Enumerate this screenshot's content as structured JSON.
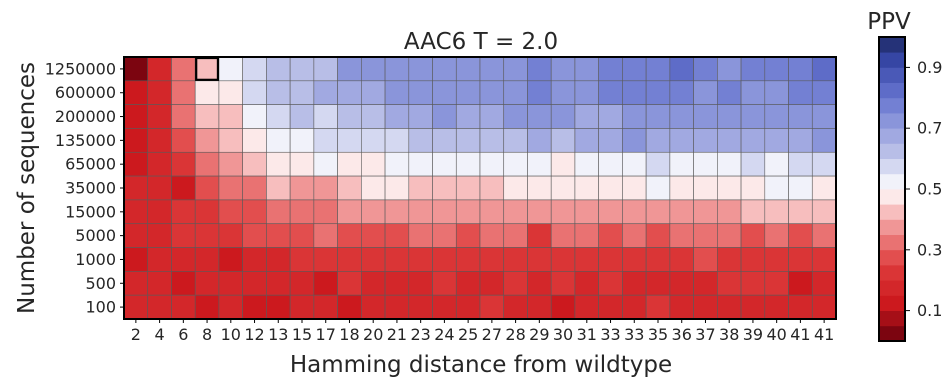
{
  "chart_data": {
    "type": "heatmap",
    "title": "AAC6 T = 2.0",
    "xlabel": "Hamming distance from wildtype",
    "ylabel": "Number of sequences",
    "x_categories": [
      "2",
      "4",
      "6",
      "8",
      "10",
      "12",
      "13",
      "15",
      "17",
      "18",
      "20",
      "21",
      "23",
      "24",
      "25",
      "27",
      "28",
      "29",
      "30",
      "31",
      "33",
      "33",
      "35",
      "36",
      "37",
      "38",
      "39",
      "40",
      "41",
      "41"
    ],
    "y_categories": [
      "1250000",
      "600000",
      "200000",
      "135000",
      "65000",
      "35000",
      "15000",
      "5000",
      "1000",
      "500",
      "100"
    ],
    "values": [
      [
        0.02,
        0.17,
        0.33,
        0.44,
        0.5,
        0.55,
        0.6,
        0.63,
        0.64,
        0.7,
        0.72,
        0.72,
        0.72,
        0.73,
        0.72,
        0.74,
        0.74,
        0.76,
        0.73,
        0.73,
        0.76,
        0.78,
        0.78,
        0.8,
        0.76,
        0.74,
        0.78,
        0.78,
        0.78,
        0.8
      ],
      [
        0.11,
        0.19,
        0.32,
        0.45,
        0.48,
        0.56,
        0.61,
        0.64,
        0.66,
        0.67,
        0.69,
        0.72,
        0.73,
        0.74,
        0.74,
        0.74,
        0.73,
        0.78,
        0.73,
        0.73,
        0.76,
        0.78,
        0.75,
        0.77,
        0.74,
        0.77,
        0.73,
        0.74,
        0.75,
        0.76
      ],
      [
        0.12,
        0.18,
        0.3,
        0.41,
        0.43,
        0.5,
        0.58,
        0.62,
        0.58,
        0.6,
        0.62,
        0.66,
        0.66,
        0.7,
        0.65,
        0.68,
        0.71,
        0.74,
        0.72,
        0.69,
        0.65,
        0.71,
        0.7,
        0.71,
        0.72,
        0.7,
        0.7,
        0.7,
        0.71,
        0.73
      ],
      [
        0.12,
        0.18,
        0.29,
        0.36,
        0.41,
        0.47,
        0.5,
        0.54,
        0.56,
        0.58,
        0.59,
        0.58,
        0.6,
        0.61,
        0.63,
        0.62,
        0.64,
        0.66,
        0.64,
        0.66,
        0.67,
        0.72,
        0.67,
        0.66,
        0.66,
        0.66,
        0.67,
        0.67,
        0.68,
        0.7
      ],
      [
        0.13,
        0.19,
        0.24,
        0.33,
        0.36,
        0.4,
        0.45,
        0.49,
        0.54,
        0.48,
        0.47,
        0.53,
        0.51,
        0.5,
        0.53,
        0.52,
        0.52,
        0.51,
        0.49,
        0.52,
        0.53,
        0.53,
        0.55,
        0.53,
        0.52,
        0.52,
        0.57,
        0.52,
        0.55,
        0.56
      ],
      [
        0.15,
        0.17,
        0.14,
        0.29,
        0.33,
        0.3,
        0.4,
        0.38,
        0.37,
        0.41,
        0.45,
        0.46,
        0.44,
        0.44,
        0.42,
        0.44,
        0.46,
        0.47,
        0.45,
        0.46,
        0.49,
        0.47,
        0.52,
        0.47,
        0.49,
        0.47,
        0.47,
        0.51,
        0.5,
        0.48
      ],
      [
        0.16,
        0.18,
        0.24,
        0.22,
        0.25,
        0.27,
        0.33,
        0.34,
        0.34,
        0.36,
        0.37,
        0.38,
        0.37,
        0.38,
        0.38,
        0.39,
        0.39,
        0.38,
        0.38,
        0.38,
        0.37,
        0.36,
        0.35,
        0.38,
        0.37,
        0.38,
        0.4,
        0.42,
        0.4,
        0.41
      ],
      [
        0.15,
        0.17,
        0.2,
        0.2,
        0.24,
        0.26,
        0.26,
        0.29,
        0.31,
        0.26,
        0.28,
        0.29,
        0.3,
        0.31,
        0.26,
        0.3,
        0.31,
        0.24,
        0.3,
        0.31,
        0.28,
        0.31,
        0.29,
        0.3,
        0.31,
        0.3,
        0.27,
        0.31,
        0.29,
        0.3
      ],
      [
        0.14,
        0.15,
        0.17,
        0.17,
        0.11,
        0.18,
        0.19,
        0.21,
        0.22,
        0.22,
        0.24,
        0.23,
        0.22,
        0.24,
        0.23,
        0.22,
        0.24,
        0.22,
        0.2,
        0.24,
        0.22,
        0.23,
        0.21,
        0.2,
        0.25,
        0.22,
        0.22,
        0.21,
        0.24,
        0.24
      ],
      [
        0.15,
        0.16,
        0.14,
        0.17,
        0.17,
        0.18,
        0.17,
        0.18,
        0.13,
        0.2,
        0.18,
        0.19,
        0.19,
        0.21,
        0.17,
        0.19,
        0.2,
        0.19,
        0.21,
        0.18,
        0.2,
        0.17,
        0.18,
        0.19,
        0.17,
        0.2,
        0.2,
        0.21,
        0.12,
        0.17
      ],
      [
        0.16,
        0.15,
        0.16,
        0.14,
        0.16,
        0.14,
        0.12,
        0.15,
        0.16,
        0.13,
        0.17,
        0.18,
        0.18,
        0.17,
        0.17,
        0.2,
        0.17,
        0.16,
        0.14,
        0.17,
        0.19,
        0.19,
        0.21,
        0.18,
        0.19,
        0.16,
        0.17,
        0.18,
        0.17,
        0.18
      ]
    ],
    "highlight_cell": {
      "row": "1250000",
      "col": "8"
    },
    "colorbar": {
      "label": "PPV",
      "range": [
        0.0,
        1.0
      ],
      "ticks": [
        "0.1",
        "0.3",
        "0.5",
        "0.7",
        "0.9"
      ],
      "tick_values": [
        0.1,
        0.3,
        0.5,
        0.7,
        0.9
      ],
      "colormap": "seismic_r (red low, white 0.5, blue high)",
      "bins": 20
    }
  }
}
